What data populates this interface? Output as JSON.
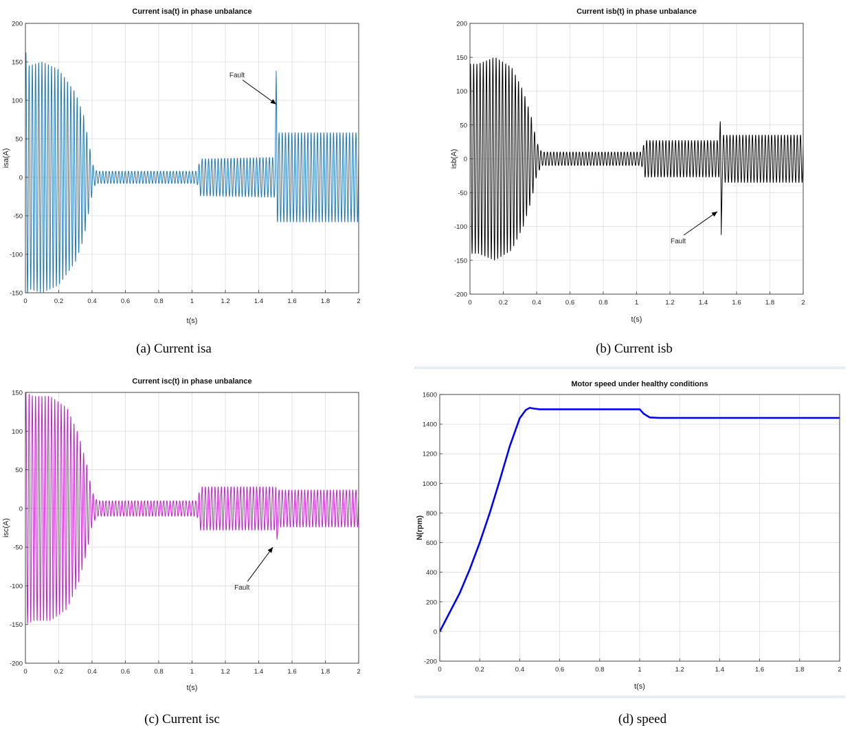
{
  "captions": {
    "a": "(a) Current isa",
    "b": "(b) Current isb",
    "c": "(c) Current isc",
    "d": "(d) speed"
  },
  "chart_data": [
    {
      "id": "a",
      "type": "line",
      "title": "Current isa(t) in phase unbalance",
      "xlabel": "t(s)",
      "ylabel": "isa(A)",
      "xlim": [
        0,
        2
      ],
      "ylim": [
        -150,
        200
      ],
      "xticks": [
        0,
        0.2,
        0.4,
        0.6,
        0.8,
        1,
        1.2,
        1.4,
        1.6,
        1.8,
        2
      ],
      "yticks": [
        -150,
        -100,
        -50,
        0,
        50,
        100,
        150,
        200
      ],
      "grid": true,
      "color": "#1f77b4",
      "freq_hz": 50,
      "envelope": {
        "t": [
          0,
          0.02,
          0.1,
          0.2,
          0.3,
          0.35,
          0.38,
          0.41,
          0.43,
          1.03,
          1.05,
          1.5,
          1.505,
          2
        ],
        "amp": [
          165,
          145,
          150,
          140,
          110,
          80,
          45,
          12,
          8,
          8,
          24,
          26,
          58,
          58
        ]
      },
      "spikes": [
        {
          "t": 1.505,
          "value": 138
        }
      ],
      "annotations": [
        {
          "text": "Fault",
          "tx": 1.27,
          "ty": 130,
          "ax": 1.505,
          "ay": 95
        }
      ]
    },
    {
      "id": "b",
      "type": "line",
      "title": "Current isb(t) in phase unbalance",
      "xlabel": "t(s)",
      "ylabel": "isb(A)",
      "xlim": [
        0,
        2
      ],
      "ylim": [
        -200,
        200
      ],
      "xticks": [
        0,
        0.2,
        0.4,
        0.6,
        0.8,
        1,
        1.2,
        1.4,
        1.6,
        1.8,
        2
      ],
      "yticks": [
        -200,
        -150,
        -100,
        -50,
        0,
        50,
        100,
        150,
        200
      ],
      "grid": true,
      "color": "#000000",
      "freq_hz": 50,
      "envelope": {
        "t": [
          0,
          0.05,
          0.15,
          0.25,
          0.32,
          0.37,
          0.4,
          0.43,
          1.03,
          1.05,
          1.5,
          1.51,
          2
        ],
        "amp": [
          140,
          140,
          150,
          135,
          100,
          60,
          25,
          10,
          10,
          27,
          27,
          35,
          35
        ]
      },
      "spikes": [
        {
          "t": 1.508,
          "value": -112
        },
        {
          "t": 1.502,
          "value": 55
        }
      ],
      "annotations": [
        {
          "text": "Fault",
          "tx": 1.25,
          "ty": -125,
          "ax": 1.485,
          "ay": -78
        }
      ]
    },
    {
      "id": "c",
      "type": "line",
      "title": "Current isc(t) in phase unbalance",
      "xlabel": "t(s)",
      "ylabel": "isc(A)",
      "xlim": [
        0,
        2
      ],
      "ylim": [
        -200,
        150
      ],
      "xticks": [
        0,
        0.2,
        0.4,
        0.6,
        0.8,
        1,
        1.2,
        1.4,
        1.6,
        1.8,
        2
      ],
      "yticks": [
        -200,
        -150,
        -100,
        -50,
        0,
        50,
        100,
        150
      ],
      "grid": true,
      "color": "#c020c8",
      "freq_hz": 50,
      "envelope": {
        "t": [
          0,
          0.05,
          0.15,
          0.25,
          0.32,
          0.37,
          0.4,
          0.43,
          1.03,
          1.05,
          1.5,
          1.52,
          2
        ],
        "amp": [
          150,
          145,
          145,
          130,
          95,
          55,
          22,
          10,
          10,
          28,
          28,
          24,
          24
        ]
      },
      "spikes": [
        {
          "t": 1.51,
          "value": -40
        }
      ],
      "annotations": [
        {
          "text": "Fault",
          "tx": 1.3,
          "ty": -105,
          "ax": 1.485,
          "ay": -50
        }
      ]
    },
    {
      "id": "d",
      "type": "line",
      "title": "Motor speed under healthy conditions",
      "xlabel": "t(s)",
      "ylabel": "N(rpm)",
      "xlim": [
        0,
        2
      ],
      "ylim": [
        -200,
        1600
      ],
      "xticks": [
        0,
        0.2,
        0.4,
        0.6,
        0.8,
        1,
        1.2,
        1.4,
        1.6,
        1.8,
        2
      ],
      "yticks": [
        -200,
        0,
        200,
        400,
        600,
        800,
        1000,
        1200,
        1400,
        1600
      ],
      "grid": true,
      "color": "#0000ff",
      "x": [
        0,
        0.05,
        0.1,
        0.15,
        0.2,
        0.25,
        0.3,
        0.35,
        0.4,
        0.43,
        0.45,
        0.47,
        0.5,
        1.0,
        1.02,
        1.05,
        1.1,
        2.0
      ],
      "y": [
        0,
        130,
        260,
        420,
        600,
        800,
        1020,
        1250,
        1440,
        1495,
        1510,
        1505,
        1500,
        1500,
        1470,
        1445,
        1442,
        1442
      ]
    }
  ]
}
